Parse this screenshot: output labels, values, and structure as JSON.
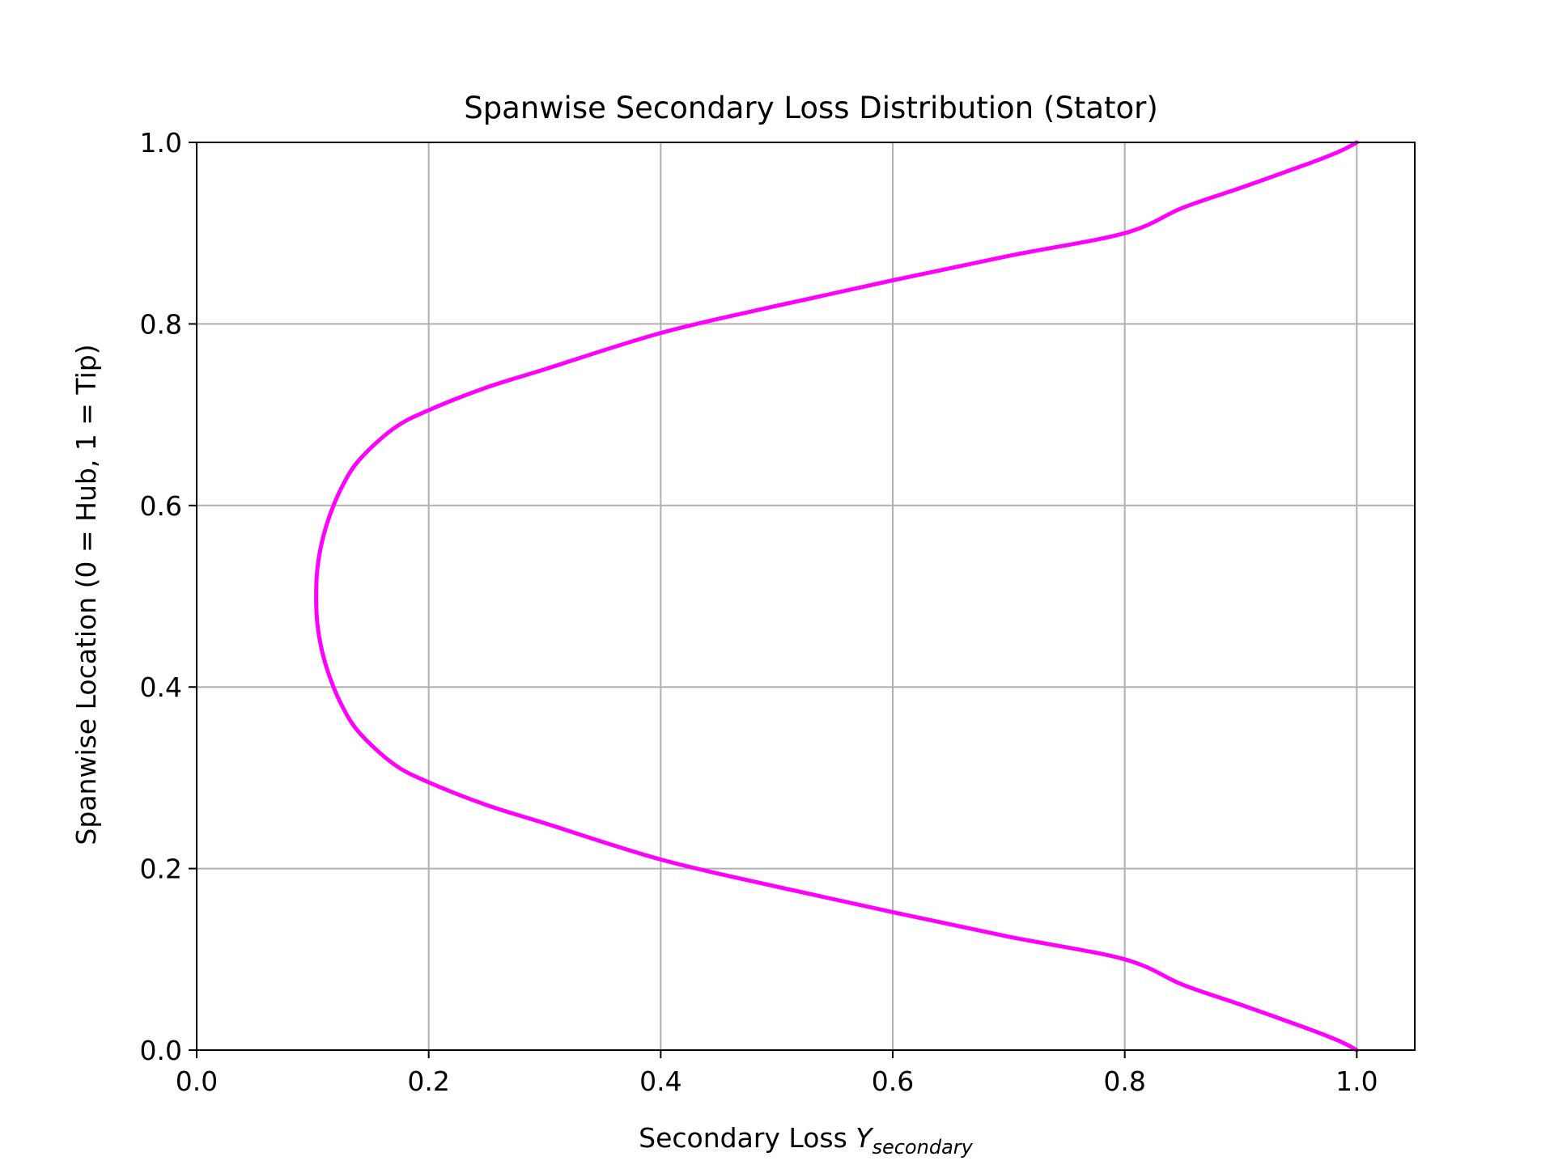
{
  "chart_data": {
    "type": "line",
    "title": "Spanwise Secondary Loss Distribution (Stator)",
    "xlabel": "Secondary Loss",
    "xlabel_symbol": "Y",
    "xlabel_subscript": "secondary",
    "ylabel": "Spanwise Location (0 = Hub, 1 = Tip)",
    "xlim": [
      0.0,
      1.05
    ],
    "ylim": [
      0.0,
      1.0
    ],
    "x_ticks": [
      "0.0",
      "0.2",
      "0.4",
      "0.6",
      "0.8",
      "1.0"
    ],
    "y_ticks": [
      "0.0",
      "0.2",
      "0.4",
      "0.6",
      "0.8",
      "1.0"
    ],
    "grid": true,
    "legend": "none",
    "series": [
      {
        "color": "#ff00ff",
        "points": [
          {
            "x": 1.0,
            "y": 0.0
          },
          {
            "x": 0.985,
            "y": 0.01
          },
          {
            "x": 0.955,
            "y": 0.025
          },
          {
            "x": 0.9,
            "y": 0.05
          },
          {
            "x": 0.85,
            "y": 0.072
          },
          {
            "x": 0.8,
            "y": 0.1
          },
          {
            "x": 0.7,
            "y": 0.125
          },
          {
            "x": 0.6,
            "y": 0.152
          },
          {
            "x": 0.5,
            "y": 0.18
          },
          {
            "x": 0.4,
            "y": 0.21
          },
          {
            "x": 0.3,
            "y": 0.25
          },
          {
            "x": 0.25,
            "y": 0.27
          },
          {
            "x": 0.2,
            "y": 0.295
          },
          {
            "x": 0.17,
            "y": 0.315
          },
          {
            "x": 0.14,
            "y": 0.35
          },
          {
            "x": 0.125,
            "y": 0.38
          },
          {
            "x": 0.115,
            "y": 0.41
          },
          {
            "x": 0.108,
            "y": 0.44
          },
          {
            "x": 0.104,
            "y": 0.47
          },
          {
            "x": 0.103,
            "y": 0.5
          },
          {
            "x": 0.104,
            "y": 0.53
          },
          {
            "x": 0.108,
            "y": 0.56
          },
          {
            "x": 0.115,
            "y": 0.59
          },
          {
            "x": 0.125,
            "y": 0.62
          },
          {
            "x": 0.14,
            "y": 0.65
          },
          {
            "x": 0.17,
            "y": 0.685
          },
          {
            "x": 0.2,
            "y": 0.705
          },
          {
            "x": 0.25,
            "y": 0.73
          },
          {
            "x": 0.3,
            "y": 0.75
          },
          {
            "x": 0.4,
            "y": 0.79
          },
          {
            "x": 0.5,
            "y": 0.82
          },
          {
            "x": 0.6,
            "y": 0.848
          },
          {
            "x": 0.7,
            "y": 0.875
          },
          {
            "x": 0.8,
            "y": 0.9
          },
          {
            "x": 0.85,
            "y": 0.928
          },
          {
            "x": 0.9,
            "y": 0.95
          },
          {
            "x": 0.955,
            "y": 0.975
          },
          {
            "x": 0.985,
            "y": 0.99
          },
          {
            "x": 1.0,
            "y": 1.0
          }
        ]
      }
    ]
  }
}
